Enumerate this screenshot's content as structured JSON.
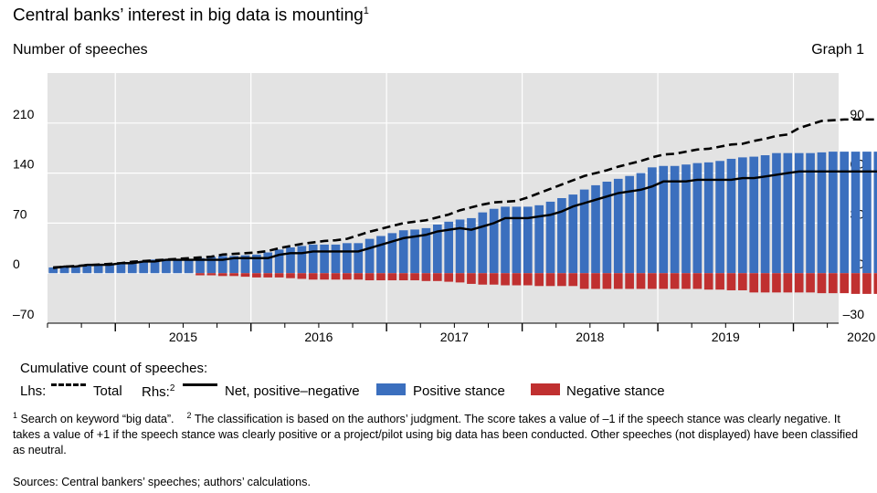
{
  "header": {
    "title": "Central banks’ interest in big data is mounting",
    "title_note": "1",
    "subtitle": "Number of speeches",
    "graph_label": "Graph 1"
  },
  "legend": {
    "heading": "Cumulative count of speeches:",
    "lhs_label": "Lhs:",
    "total_label": "Total",
    "rhs_label": "Rhs:",
    "rhs_note": "2",
    "net_label": "Net, positive–negative",
    "positive_label": "Positive stance",
    "negative_label": "Negative stance"
  },
  "footnotes": {
    "note1_mark": "1",
    "note1_text": "Search on keyword “big data”.",
    "note2_mark": "2",
    "note2_text": "The classification is based on the authors’ judgment. The score takes a value of –1 if the speech stance was clearly negative. It takes a value of +1 if the speech stance was clearly positive or a project/pilot using big data has been conducted. Other speeches (not displayed) have been classified as neutral.",
    "sources": "Sources: Central bankers’ speeches; authors’ calculations."
  },
  "colors": {
    "positive": "#3b6fbe",
    "negative": "#c03030",
    "plot_background": "#e3e3e3",
    "line": "#000000"
  },
  "chart_data": {
    "type": "bar",
    "x_axis": {
      "tick_labels": [
        "2015",
        "2016",
        "2017",
        "2018",
        "2019",
        "2020"
      ],
      "unit": "months",
      "start": "2014-07",
      "end": "2020-04"
    },
    "y_left": {
      "range": [
        -70,
        280
      ],
      "ticks": [
        -70,
        0,
        70,
        140,
        210
      ]
    },
    "y_right": {
      "range": [
        -30,
        120
      ],
      "ticks": [
        -30,
        0,
        30,
        60,
        90
      ]
    },
    "grid": true,
    "series": [
      {
        "name": "Positive stance",
        "axis": "left",
        "kind": "bar",
        "values": [
          8,
          9,
          10,
          11,
          12,
          13,
          14,
          15,
          17,
          19,
          20,
          19,
          20,
          21,
          23,
          24,
          24,
          25,
          26,
          29,
          33,
          36,
          38,
          40,
          40,
          40,
          42,
          42,
          48,
          52,
          56,
          60,
          61,
          63,
          68,
          72,
          75,
          77,
          85,
          90,
          93,
          93,
          93,
          95,
          100,
          105,
          110,
          117,
          123,
          128,
          132,
          136,
          140,
          148,
          150,
          150,
          152,
          154,
          155,
          157,
          160,
          162,
          163,
          165,
          168,
          168,
          168,
          168,
          169,
          170,
          170,
          170,
          170,
          170,
          170,
          170,
          172
        ]
      },
      {
        "name": "Negative stance",
        "axis": "left",
        "kind": "bar",
        "values": [
          0,
          0,
          0,
          0,
          0,
          0,
          0,
          0,
          0,
          0,
          0,
          0,
          0,
          -3,
          -3,
          -4,
          -4,
          -5,
          -6,
          -6,
          -6,
          -7,
          -8,
          -9,
          -9,
          -9,
          -9,
          -9,
          -10,
          -10,
          -10,
          -10,
          -10,
          -11,
          -11,
          -12,
          -13,
          -15,
          -16,
          -16,
          -17,
          -17,
          -17,
          -18,
          -18,
          -18,
          -18,
          -22,
          -22,
          -22,
          -22,
          -22,
          -22,
          -22,
          -22,
          -22,
          -22,
          -22,
          -23,
          -23,
          -24,
          -24,
          -27,
          -27,
          -27,
          -27,
          -27,
          -27,
          -28,
          -28,
          -28,
          -29,
          -29,
          -29,
          -29,
          -29,
          -30
        ]
      },
      {
        "name": "Total",
        "axis": "left",
        "kind": "dashed-line",
        "values": [
          8,
          9,
          10,
          11,
          12,
          13,
          14,
          16,
          17,
          18,
          19,
          20,
          21,
          22,
          23,
          26,
          27,
          28,
          29,
          31,
          35,
          38,
          41,
          43,
          45,
          46,
          48,
          53,
          58,
          62,
          66,
          70,
          72,
          74,
          78,
          82,
          88,
          92,
          96,
          99,
          100,
          101,
          106,
          112,
          118,
          124,
          130,
          136,
          140,
          144,
          149,
          153,
          157,
          162,
          166,
          167,
          170,
          173,
          174,
          177,
          180,
          181,
          185,
          188,
          192,
          194,
          203,
          208,
          213,
          214,
          215,
          215,
          215,
          215,
          215,
          216,
          218
        ]
      },
      {
        "name": "Net, positive–negative",
        "axis": "right",
        "kind": "line",
        "values": [
          3,
          4,
          4,
          5,
          5,
          5,
          6,
          6,
          7,
          7,
          8,
          8,
          8,
          8,
          8,
          8,
          9,
          9,
          9,
          9,
          11,
          12,
          12,
          13,
          13,
          13,
          13,
          13,
          15,
          17,
          19,
          21,
          22,
          23,
          25,
          26,
          27,
          26,
          28,
          30,
          33,
          33,
          33,
          34,
          35,
          37,
          40,
          42,
          44,
          46,
          48,
          49,
          50,
          52,
          55,
          55,
          55,
          56,
          56,
          56,
          56,
          57,
          57,
          58,
          59,
          60,
          61,
          61,
          61,
          61,
          61,
          61,
          61,
          61,
          61,
          61,
          62
        ]
      }
    ]
  }
}
